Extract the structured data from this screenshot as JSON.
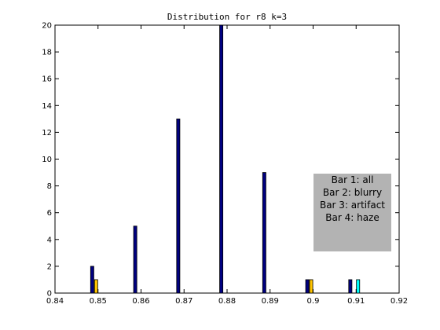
{
  "chart_data": {
    "type": "bar",
    "title": "Distribution for r8 k=3",
    "xlabel": "",
    "ylabel": "",
    "xlim": [
      0.84,
      0.92
    ],
    "ylim": [
      0,
      20
    ],
    "xticks": [
      "0.84",
      "0.85",
      "0.86",
      "0.87",
      "0.88",
      "0.89",
      "0.9",
      "0.91",
      "0.92"
    ],
    "yticks": [
      "0",
      "2",
      "4",
      "6",
      "8",
      "10",
      "12",
      "14",
      "16",
      "18",
      "20"
    ],
    "grid": false,
    "bar_groups_x": [
      0.85,
      0.86,
      0.87,
      0.88,
      0.89,
      0.9,
      0.91
    ],
    "series": [
      {
        "color": "#00007f",
        "values": [
          2,
          5,
          13,
          20,
          9,
          1,
          1
        ]
      },
      {
        "color": "#ffc400",
        "values": [
          1,
          0,
          0,
          0,
          0,
          1,
          0
        ]
      },
      {
        "color": "#00ffff",
        "values": [
          0,
          0,
          0,
          0,
          0,
          0,
          1
        ]
      },
      {
        "color": "#7f0000",
        "values": [
          0,
          0,
          0,
          0,
          0,
          0,
          0
        ]
      }
    ],
    "legend": {
      "placement": "right",
      "background": "#b3b3b3",
      "lines": [
        "Bar 1: all",
        "Bar 2: blurry",
        "Bar 3: artifact",
        "Bar 4: haze"
      ]
    }
  }
}
